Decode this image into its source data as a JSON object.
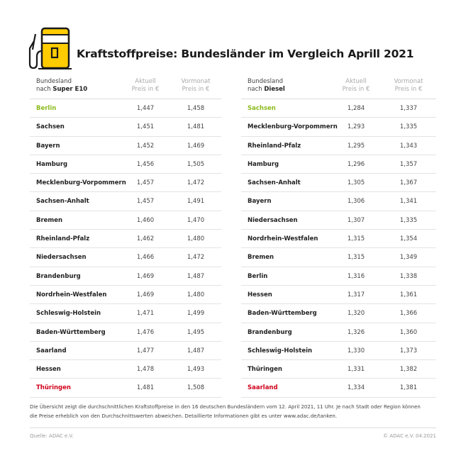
{
  "title": "Kraftstoffpreise: Bundesländer im Vergleich Aprill 2021",
  "icon": "fuel-pump-icon",
  "colors": {
    "best": "#8dbb1f",
    "worst": "#d0021b",
    "accent": "#ffcc00"
  },
  "tables": [
    {
      "header": {
        "name_line1": "Bundesland",
        "name_prefix": "nach",
        "fuel": "Super E10",
        "col1_line1": "Aktuell",
        "col1_line2": "Preis in €",
        "col2_line1": "Vormonat",
        "col2_line2": "Preis in €"
      },
      "rows": [
        {
          "state": "Berlin",
          "current": "1,447",
          "previous": "1,458",
          "highlight": "best"
        },
        {
          "state": "Sachsen",
          "current": "1,451",
          "previous": "1,481"
        },
        {
          "state": "Bayern",
          "current": "1,452",
          "previous": "1,469"
        },
        {
          "state": "Hamburg",
          "current": "1,456",
          "previous": "1,505"
        },
        {
          "state": "Mecklenburg-Vorpommern",
          "current": "1,457",
          "previous": "1,472"
        },
        {
          "state": "Sachsen-Anhalt",
          "current": "1,457",
          "previous": "1,491"
        },
        {
          "state": "Bremen",
          "current": "1,460",
          "previous": "1,470"
        },
        {
          "state": "Rheinland-Pfalz",
          "current": "1,462",
          "previous": "1,480"
        },
        {
          "state": "Niedersachsen",
          "current": "1,466",
          "previous": "1,472"
        },
        {
          "state": "Brandenburg",
          "current": "1,469",
          "previous": "1,487"
        },
        {
          "state": "Nordrhein-Westfalen",
          "current": "1,469",
          "previous": "1,480"
        },
        {
          "state": "Schleswig-Holstein",
          "current": "1,471",
          "previous": "1,499"
        },
        {
          "state": "Baden-Württemberg",
          "current": "1,476",
          "previous": "1,495"
        },
        {
          "state": "Saarland",
          "current": "1,477",
          "previous": "1,487"
        },
        {
          "state": "Hessen",
          "current": "1,478",
          "previous": "1,493"
        },
        {
          "state": "Thüringen",
          "current": "1,481",
          "previous": "1,508",
          "highlight": "worst"
        }
      ]
    },
    {
      "header": {
        "name_line1": "Bundesland",
        "name_prefix": "nach",
        "fuel": "Diesel",
        "col1_line1": "Aktuell",
        "col1_line2": "Preis in €",
        "col2_line1": "Vormonat",
        "col2_line2": "Preis in €"
      },
      "rows": [
        {
          "state": "Sachsen",
          "current": "1,284",
          "previous": "1,337",
          "highlight": "best"
        },
        {
          "state": "Mecklenburg-Vorpommern",
          "current": "1,293",
          "previous": "1,335"
        },
        {
          "state": "Rheinland-Pfalz",
          "current": "1,295",
          "previous": "1,343"
        },
        {
          "state": "Hamburg",
          "current": "1,296",
          "previous": "1,357"
        },
        {
          "state": "Sachsen-Anhalt",
          "current": "1,305",
          "previous": "1,367"
        },
        {
          "state": "Bayern",
          "current": "1,306",
          "previous": "1,341"
        },
        {
          "state": "Niedersachsen",
          "current": "1,307",
          "previous": "1,335"
        },
        {
          "state": "Nordrhein-Westfalen",
          "current": "1,315",
          "previous": "1,354"
        },
        {
          "state": "Bremen",
          "current": "1,315",
          "previous": "1,349"
        },
        {
          "state": "Berlin",
          "current": "1,316",
          "previous": "1,338"
        },
        {
          "state": "Hessen",
          "current": "1,317",
          "previous": "1,361"
        },
        {
          "state": "Baden-Württemberg",
          "current": "1,320",
          "previous": "1,366"
        },
        {
          "state": "Brandenburg",
          "current": "1,326",
          "previous": "1,360"
        },
        {
          "state": "Schleswig-Holstein",
          "current": "1,330",
          "previous": "1,373"
        },
        {
          "state": "Thüringen",
          "current": "1,331",
          "previous": "1,382"
        },
        {
          "state": "Saarland",
          "current": "1,334",
          "previous": "1,381",
          "highlight": "worst"
        }
      ]
    }
  ],
  "note": "Die Übersicht zeigt die durchschnittlichen Kraftstoffpreise in den 16 deutschen Bundesländern vom 12. April 2021, 11 Uhr. Je nach Stadt oder Region können die Preise erheblich von den Durchschnittswerten abweichen. Detaillierte Informationen gibt es unter www.adac.de/tanken.",
  "source": "Quelle: ADAC e.V.",
  "copyright": "© ADAC e.V. 04.2021"
}
